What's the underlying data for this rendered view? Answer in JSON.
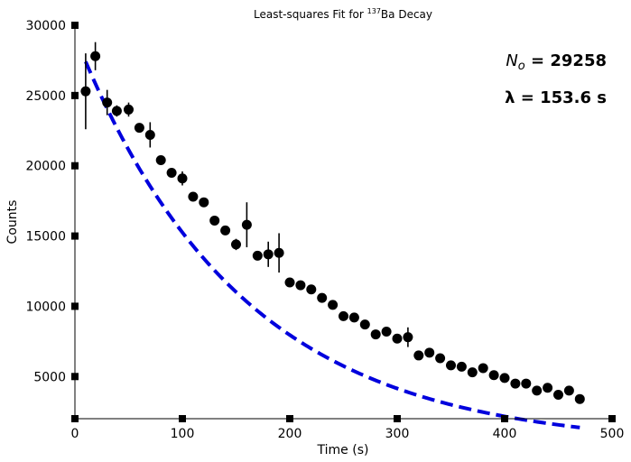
{
  "chart_data": {
    "type": "scatter",
    "title": {
      "prefix": "Least-squares Fit for ",
      "superscript": "137",
      "suffix": "Ba Decay"
    },
    "xlabel": "Time (s)",
    "ylabel": "Counts",
    "xlim": [
      0,
      500
    ],
    "ylim": [
      2000,
      30000
    ],
    "x_ticks": [
      0,
      100,
      200,
      300,
      400,
      500
    ],
    "y_ticks": [
      5000,
      10000,
      15000,
      20000,
      25000,
      30000
    ],
    "grid": false,
    "annotations": {
      "n0": {
        "symbol": "N",
        "subscript": "o",
        "text": " = 29258"
      },
      "lambda": {
        "text": "λ = 153.6 s"
      }
    },
    "series": [
      {
        "type": "points_with_errorbars",
        "color": "#000000",
        "x": [
          10,
          19,
          30,
          39,
          50,
          60,
          70,
          80,
          90,
          100,
          110,
          120,
          130,
          140,
          150,
          160,
          170,
          180,
          190,
          200,
          210,
          220,
          230,
          240,
          250,
          260,
          270,
          280,
          290,
          300,
          310,
          320,
          330,
          340,
          350,
          360,
          370,
          380,
          390,
          400,
          410,
          420,
          430,
          440,
          450,
          460,
          470
        ],
        "y": [
          25300,
          27800,
          24500,
          23900,
          24000,
          22700,
          22200,
          20400,
          19500,
          19100,
          17800,
          17400,
          16100,
          15400,
          14400,
          15800,
          13600,
          13700,
          13800,
          11700,
          11500,
          11200,
          10600,
          10100,
          9300,
          9200,
          8700,
          8000,
          8200,
          7700,
          7800,
          6500,
          6700,
          6300,
          5800,
          5700,
          5300,
          5600,
          5100,
          4900,
          4500,
          4500,
          4000,
          4200,
          3700,
          4000,
          3400
        ],
        "yerr": [
          2700,
          1000,
          900,
          400,
          500,
          300,
          900,
          200,
          200,
          500,
          300,
          300,
          200,
          300,
          400,
          1600,
          300,
          900,
          1400,
          200,
          200,
          300,
          200,
          200,
          200,
          200,
          200,
          300,
          200,
          200,
          700,
          300,
          200,
          200,
          200,
          200,
          200,
          200,
          200,
          200,
          200,
          200,
          200,
          200,
          200,
          200,
          200
        ]
      },
      {
        "type": "fit_curve",
        "color": "#0000dd",
        "style": "dashed",
        "model": "N0 * exp(-t / lambda)",
        "N0": 29258,
        "lambda": 153.6,
        "x_range": [
          10,
          470
        ]
      }
    ]
  }
}
